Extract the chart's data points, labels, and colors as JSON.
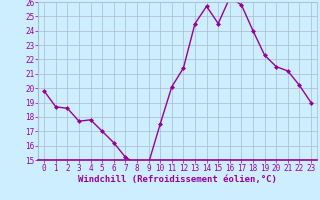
{
  "hours": [
    0,
    1,
    2,
    3,
    4,
    5,
    6,
    7,
    8,
    9,
    10,
    11,
    12,
    13,
    14,
    15,
    16,
    17,
    18,
    19,
    20,
    21,
    22,
    23
  ],
  "values": [
    19.8,
    18.7,
    18.6,
    17.7,
    17.8,
    17.0,
    16.2,
    15.2,
    14.7,
    14.8,
    17.5,
    20.1,
    21.4,
    24.5,
    25.7,
    24.5,
    26.3,
    25.8,
    24.0,
    22.3,
    21.5,
    21.2,
    20.2,
    19.0
  ],
  "line_color": "#990099",
  "marker": "D",
  "marker_size": 2,
  "bg_color": "#cceeff",
  "grid_color": "#aabbcc",
  "ylim": [
    15,
    26
  ],
  "yticks": [
    15,
    16,
    17,
    18,
    19,
    20,
    21,
    22,
    23,
    24,
    25,
    26
  ],
  "xlabel": "Windchill (Refroidissement éolien,°C)",
  "xlabel_color": "#990099",
  "tick_color": "#990099",
  "tick_fontsize": 5.5,
  "xlabel_fontsize": 6.5,
  "linewidth": 1.0
}
